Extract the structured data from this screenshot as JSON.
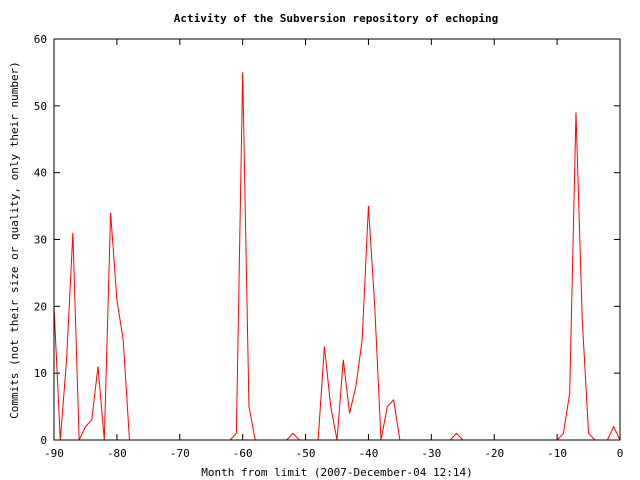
{
  "chart_data": {
    "type": "line",
    "title": "Activity of the Subversion repository of echoping",
    "xlabel": "Month from limit (2007-December-04 12:14)",
    "ylabel": "Commits (not their size or quality, only their number)",
    "xlim": [
      -90,
      0
    ],
    "ylim": [
      0,
      60
    ],
    "xticks": [
      -90,
      -80,
      -70,
      -60,
      -50,
      -40,
      -30,
      -20,
      -10,
      0
    ],
    "yticks": [
      0,
      10,
      20,
      30,
      40,
      50,
      60
    ],
    "grid": false,
    "legend": "none",
    "series": [
      {
        "color": "#ff0000",
        "x": [
          -90,
          -89,
          -88,
          -87,
          -86,
          -85,
          -84,
          -83,
          -82,
          -81,
          -80,
          -79,
          -78,
          -77,
          -76,
          -75,
          -74,
          -73,
          -72,
          -71,
          -70,
          -69,
          -68,
          -67,
          -66,
          -65,
          -64,
          -63,
          -62,
          -61,
          -60,
          -59,
          -58,
          -57,
          -56,
          -55,
          -54,
          -53,
          -52,
          -51,
          -50,
          -49,
          -48,
          -47,
          -46,
          -45,
          -44,
          -43,
          -42,
          -41,
          -40,
          -39,
          -38,
          -37,
          -36,
          -35,
          -34,
          -33,
          -32,
          -31,
          -30,
          -29,
          -28,
          -27,
          -26,
          -25,
          -24,
          -23,
          -22,
          -21,
          -20,
          -19,
          -18,
          -17,
          -16,
          -15,
          -14,
          -13,
          -12,
          -11,
          -10,
          -9,
          -8,
          -7,
          -6,
          -5,
          -4,
          -3,
          -2,
          -1,
          0
        ],
        "y": [
          20,
          0,
          12,
          31,
          0,
          2,
          3,
          11,
          0,
          34,
          21,
          15,
          0,
          0,
          0,
          0,
          0,
          0,
          0,
          0,
          0,
          0,
          0,
          0,
          0,
          0,
          0,
          0,
          0,
          1,
          55,
          5,
          0,
          0,
          0,
          0,
          0,
          0,
          1,
          0,
          0,
          0,
          0,
          14,
          5,
          0,
          12,
          4,
          8,
          15,
          35,
          20,
          0,
          5,
          6,
          0,
          0,
          0,
          0,
          0,
          0,
          0,
          0,
          0,
          1,
          0,
          0,
          0,
          0,
          0,
          0,
          0,
          0,
          0,
          0,
          0,
          0,
          0,
          0,
          0,
          0,
          1,
          7,
          49,
          18,
          1,
          0,
          0,
          0,
          2,
          0
        ]
      }
    ]
  }
}
